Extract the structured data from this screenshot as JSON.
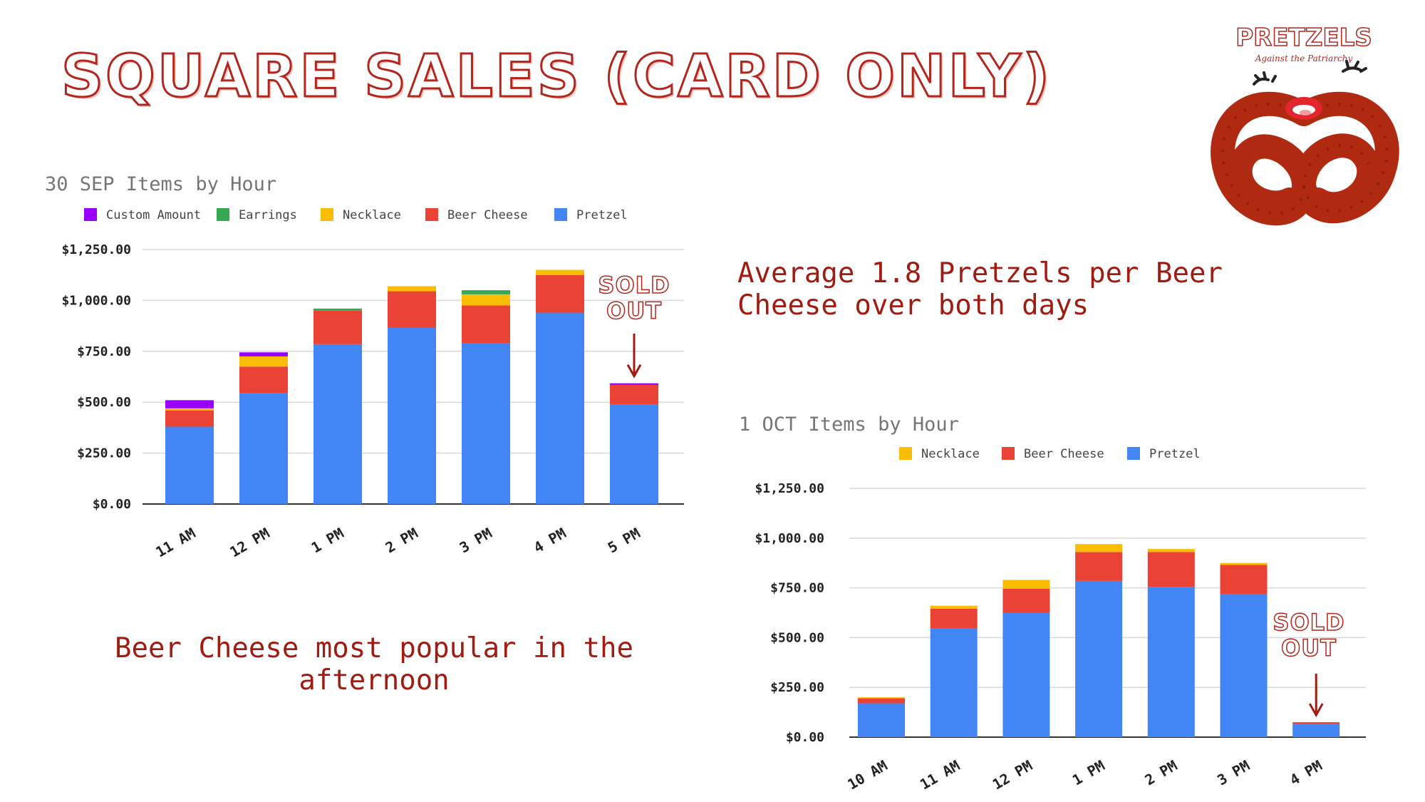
{
  "page": {
    "title": "SQUARE SALES (CARD ONLY)",
    "note_avg": "Average 1.8 Pretzels per Beer Cheese over both days",
    "note_beer": "Beer Cheese most popular in the afternoon",
    "sold_out": "SOLD OUT"
  },
  "logo": {
    "name": "PRETZELS",
    "tagline": "Against the Patriarchy"
  },
  "colors": {
    "pretzel": "#4285f4",
    "beer_cheese": "#ea4335",
    "necklace": "#fbbc04",
    "earrings": "#34a853",
    "custom_amount": "#9900ff",
    "accent": "#a01b12"
  },
  "chart_data": [
    {
      "type": "bar",
      "stacked": true,
      "title": "30 SEP Items by Hour",
      "categories": [
        "11 AM",
        "12 PM",
        "1 PM",
        "2 PM",
        "3 PM",
        "4 PM",
        "5 PM"
      ],
      "series": [
        {
          "name": "Pretzel",
          "color": "#4285f4",
          "values": [
            380,
            545,
            785,
            865,
            790,
            940,
            490
          ]
        },
        {
          "name": "Beer Cheese",
          "color": "#ea4335",
          "values": [
            80,
            130,
            165,
            180,
            185,
            185,
            95
          ]
        },
        {
          "name": "Necklace",
          "color": "#fbbc04",
          "values": [
            10,
            50,
            0,
            25,
            55,
            25,
            0
          ]
        },
        {
          "name": "Earrings",
          "color": "#34a853",
          "values": [
            0,
            0,
            10,
            0,
            20,
            0,
            0
          ]
        },
        {
          "name": "Custom Amount",
          "color": "#9900ff",
          "values": [
            40,
            20,
            0,
            0,
            0,
            0,
            8
          ]
        }
      ],
      "legend_order": [
        "Custom Amount",
        "Earrings",
        "Necklace",
        "Beer Cheese",
        "Pretzel"
      ],
      "legend_position": "top",
      "y_ticks": [
        "$0.00",
        "$250.00",
        "$500.00",
        "$750.00",
        "$1,000.00",
        "$1,250.00"
      ],
      "ylim": [
        0,
        1250
      ],
      "grid": true,
      "annotation": {
        "text": "SOLD OUT",
        "category": "5 PM"
      }
    },
    {
      "type": "bar",
      "stacked": true,
      "title": "1 OCT Items by Hour",
      "categories": [
        "10 AM",
        "11 AM",
        "12 PM",
        "1 PM",
        "2 PM",
        "3 PM",
        "4 PM"
      ],
      "series": [
        {
          "name": "Pretzel",
          "color": "#4285f4",
          "values": [
            170,
            545,
            625,
            785,
            755,
            720,
            65
          ]
        },
        {
          "name": "Beer Cheese",
          "color": "#ea4335",
          "values": [
            25,
            100,
            120,
            145,
            175,
            145,
            10
          ]
        },
        {
          "name": "Necklace",
          "color": "#fbbc04",
          "values": [
            5,
            15,
            45,
            40,
            15,
            10,
            0
          ]
        }
      ],
      "legend_order": [
        "Necklace",
        "Beer Cheese",
        "Pretzel"
      ],
      "legend_position": "top",
      "y_ticks": [
        "$0.00",
        "$250.00",
        "$500.00",
        "$750.00",
        "$1,000.00",
        "$1,250.00"
      ],
      "ylim": [
        0,
        1250
      ],
      "grid": true,
      "annotation": {
        "text": "SOLD OUT",
        "category": "4 PM"
      }
    }
  ]
}
